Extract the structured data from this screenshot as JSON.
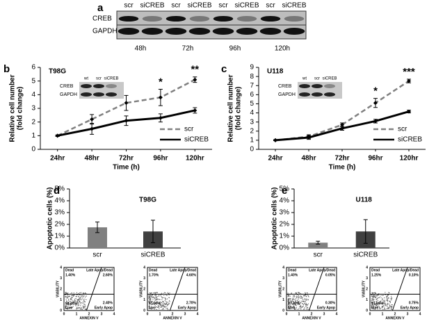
{
  "blot": {
    "panel": "a",
    "lanes": [
      "scr",
      "siCREB",
      "scr",
      "siCREB",
      "scr",
      "siCREB",
      "scr",
      "siCREB"
    ],
    "rows": [
      "CREB",
      "GAPDH"
    ],
    "times": [
      "48h",
      "72h",
      "96h",
      "120h"
    ]
  },
  "chart_data": [
    {
      "type": "line",
      "panel": "b",
      "title": "T98G",
      "xlabel": "Time (h)",
      "ylabel": [
        "Relative cell number",
        "(fold change)"
      ],
      "categories": [
        "24hr",
        "48hr",
        "72hr",
        "96hr",
        "120hr"
      ],
      "ylim": [
        0,
        6
      ],
      "yticks": [
        0,
        1,
        2,
        3,
        4,
        5,
        6
      ],
      "series": [
        {
          "name": "scr",
          "color": "#808080",
          "dash": true,
          "values": [
            1,
            2.2,
            3.4,
            3.8,
            5.1
          ],
          "errors": [
            0.05,
            0.35,
            0.55,
            0.6,
            0.2
          ]
        },
        {
          "name": "siCREB",
          "color": "#000000",
          "dash": false,
          "values": [
            1,
            1.5,
            2.1,
            2.3,
            2.85
          ],
          "errors": [
            0.05,
            0.4,
            0.35,
            0.3,
            0.2
          ]
        }
      ],
      "annotations": [
        {
          "text": "*",
          "category": 3
        },
        {
          "text": "**",
          "category": 4
        }
      ],
      "inset": {
        "lanes": [
          "wt",
          "scr",
          "siCREB"
        ],
        "rows": [
          "CREB",
          "GAPDH"
        ]
      }
    },
    {
      "type": "line",
      "panel": "c",
      "title": "U118",
      "xlabel": "Time (h)",
      "ylabel": [
        "Relative cell number",
        "(fold change)"
      ],
      "categories": [
        "24hr",
        "48hr",
        "72hr",
        "96hr",
        "120hr"
      ],
      "ylim": [
        0,
        9
      ],
      "yticks": [
        0,
        1,
        2,
        3,
        4,
        5,
        6,
        7,
        8,
        9
      ],
      "series": [
        {
          "name": "scr",
          "color": "#808080",
          "dash": true,
          "values": [
            1,
            1.4,
            2.7,
            5.1,
            7.5
          ],
          "errors": [
            0.05,
            0.2,
            0.2,
            0.5,
            0.2
          ]
        },
        {
          "name": "siCREB",
          "color": "#000000",
          "dash": false,
          "values": [
            1,
            1.3,
            2.3,
            3.1,
            4.15
          ],
          "errors": [
            0.05,
            0.2,
            0.2,
            0.2,
            0.15
          ]
        }
      ],
      "annotations": [
        {
          "text": "*",
          "category": 3
        },
        {
          "text": "***",
          "category": 4
        }
      ],
      "inset": {
        "lanes": [
          "wt",
          "scr",
          "siCREB"
        ],
        "rows": [
          "CREB",
          "GAPDH"
        ]
      }
    },
    {
      "type": "bar",
      "panel": "d",
      "title": "T98G",
      "ylabel": "Apoptotic cells (%)",
      "categories": [
        "scr",
        "siCREB"
      ],
      "values": [
        1.75,
        1.4
      ],
      "errors": [
        0.45,
        0.95
      ],
      "colors": [
        "#808080",
        "#404040"
      ],
      "ylim": [
        0,
        5
      ],
      "yticks": [
        {
          "value": 0,
          "label": "0%"
        },
        {
          "value": 1,
          "label": "1%"
        },
        {
          "value": 2,
          "label": "2%"
        },
        {
          "value": 3,
          "label": "3%"
        },
        {
          "value": 4,
          "label": "4%"
        },
        {
          "value": 5,
          "label": "5%"
        }
      ]
    },
    {
      "type": "bar",
      "panel": "e",
      "title": "U118",
      "ylabel": "Apoptotic cells (%)",
      "categories": [
        "scr",
        "siCREB"
      ],
      "values": [
        0.45,
        1.4
      ],
      "errors": [
        0.12,
        1.0
      ],
      "colors": [
        "#808080",
        "#404040"
      ],
      "ylim": [
        0,
        5
      ],
      "yticks": [
        {
          "value": 0,
          "label": "0%"
        },
        {
          "value": 1,
          "label": "1%"
        },
        {
          "value": 2,
          "label": "2%"
        },
        {
          "value": 3,
          "label": "3%"
        },
        {
          "value": 4,
          "label": "4%"
        },
        {
          "value": 5,
          "label": "5%"
        }
      ]
    }
  ],
  "flow_labels": {
    "dead": "Dead",
    "late": "Late Apop/Dead",
    "live": "Live",
    "early": "Early Apop",
    "y": "VIABILITY",
    "x": "ANNEXIN V",
    "ticks": [
      0,
      1,
      2,
      3,
      4
    ]
  },
  "flow": [
    [
      {
        "dead": "1.40%",
        "late": "2.60%",
        "live": "93.40%",
        "early": "2.40%"
      },
      {
        "dead": "1.70%",
        "late": "4.60%",
        "live": "91.00%",
        "early": "2.70%"
      }
    ],
    [
      {
        "dead": "1.40%",
        "late": "0.05%",
        "live": "97.40%",
        "early": "0.30%"
      },
      {
        "dead": "1.25%",
        "late": "0.10%",
        "live": "97.80%",
        "early": "0.75%"
      }
    ]
  ]
}
